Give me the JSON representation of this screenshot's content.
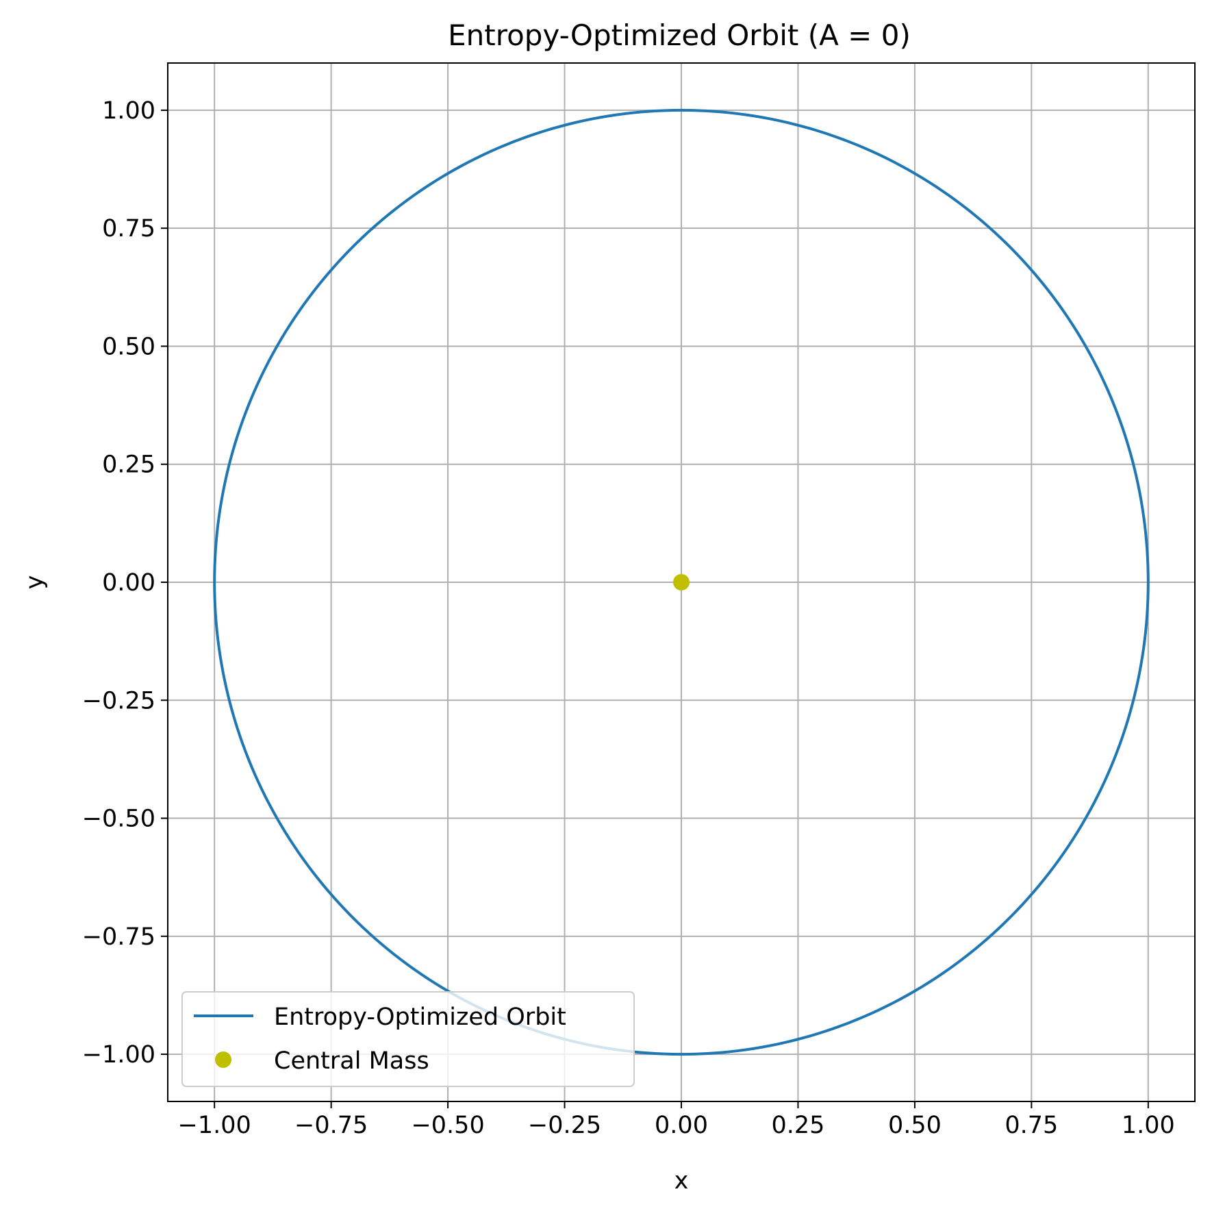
{
  "chart_data": {
    "type": "line",
    "title": "Entropy-Optimized Orbit (A = 0)",
    "xlabel": "x",
    "ylabel": "y",
    "xlim": [
      -1.1,
      1.1
    ],
    "ylim": [
      -1.1,
      1.1
    ],
    "xticks": [
      -1.0,
      -0.75,
      -0.5,
      -0.25,
      0.0,
      0.25,
      0.5,
      0.75,
      1.0
    ],
    "yticks": [
      -1.0,
      -0.75,
      -0.5,
      -0.25,
      0.0,
      0.25,
      0.5,
      0.75,
      1.0
    ],
    "xtick_labels": [
      "−1.00",
      "−0.75",
      "−0.50",
      "−0.25",
      "0.00",
      "0.25",
      "0.50",
      "0.75",
      "1.00"
    ],
    "ytick_labels": [
      "−1.00",
      "−0.75",
      "−0.50",
      "−0.25",
      "0.00",
      "0.25",
      "0.50",
      "0.75",
      "1.00"
    ],
    "grid": true,
    "legend_position": "lower-left",
    "series": [
      {
        "name": "Entropy-Optimized Orbit",
        "kind": "line",
        "color": "#1f77b4",
        "x": [
          1.0,
          0.9659,
          0.866,
          0.7071,
          0.5,
          0.2588,
          0.0,
          -0.2588,
          -0.5,
          -0.7071,
          -0.866,
          -0.9659,
          -1.0,
          -0.9659,
          -0.866,
          -0.7071,
          -0.5,
          -0.2588,
          0.0,
          0.2588,
          0.5,
          0.7071,
          0.866,
          0.9659,
          1.0
        ],
        "y": [
          0.0,
          0.2588,
          0.5,
          0.7071,
          0.866,
          0.9659,
          1.0,
          0.9659,
          0.866,
          0.7071,
          0.5,
          0.2588,
          0.0,
          -0.2588,
          -0.5,
          -0.7071,
          -0.866,
          -0.9659,
          -1.0,
          -0.9659,
          -0.866,
          -0.7071,
          -0.5,
          -0.2588,
          0.0
        ]
      },
      {
        "name": "Central Mass",
        "kind": "marker",
        "color": "#bfbf00",
        "x": [
          0.0
        ],
        "y": [
          0.0
        ]
      }
    ]
  }
}
